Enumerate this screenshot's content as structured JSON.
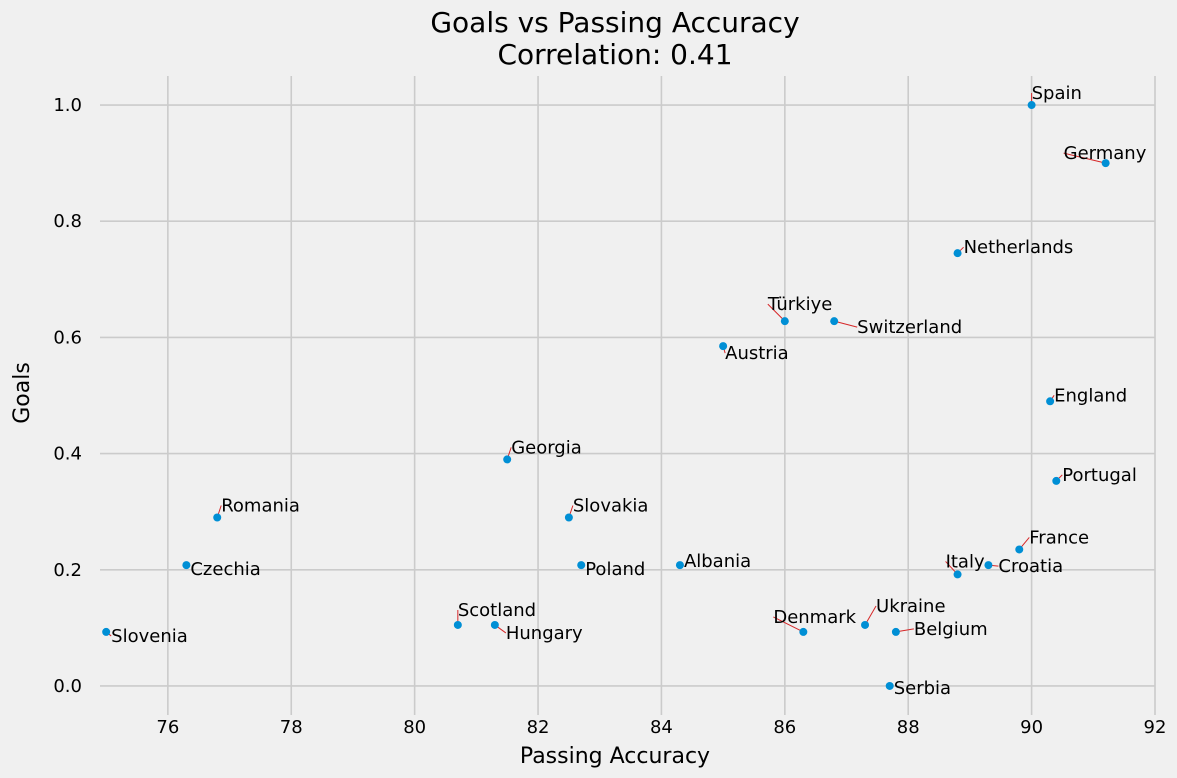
{
  "chart_data": {
    "type": "scatter",
    "title": "Goals vs Passing Accuracy",
    "subtitle": "Correlation: 0.41",
    "xlabel": "Passing Accuracy",
    "ylabel": "Goals",
    "xlim": [
      74.9,
      92.0
    ],
    "ylim": [
      -0.05,
      1.05
    ],
    "x_ticks": [
      76,
      78,
      80,
      82,
      84,
      86,
      88,
      90,
      92
    ],
    "y_ticks": [
      0.0,
      0.2,
      0.4,
      0.6,
      0.8,
      1.0
    ],
    "x_tick_labels": [
      "76",
      "78",
      "80",
      "82",
      "84",
      "86",
      "88",
      "90",
      "92"
    ],
    "y_tick_labels": [
      "0.0",
      "0.2",
      "0.4",
      "0.6",
      "0.8",
      "1.0"
    ],
    "grid": true,
    "colors": {
      "point": "#008fd5",
      "leader": "#d62728",
      "background": "#f0f0f0",
      "grid": "#cbcbcb"
    },
    "points": [
      {
        "label": "Spain",
        "x": 90.0,
        "y": 1.0,
        "dx": 0,
        "dy": -12
      },
      {
        "label": "Germany",
        "x": 91.2,
        "y": 0.9,
        "dx": -42,
        "dy": -10
      },
      {
        "label": "Netherlands",
        "x": 88.8,
        "y": 0.745,
        "dx": 6,
        "dy": -6
      },
      {
        "label": "Türkiye",
        "x": 86.0,
        "y": 0.628,
        "dx": -17,
        "dy": -17
      },
      {
        "label": "Switzerland",
        "x": 86.8,
        "y": 0.628,
        "dx": 23,
        "dy": 6
      },
      {
        "label": "Austria",
        "x": 85.0,
        "y": 0.585,
        "dx": 2,
        "dy": 7
      },
      {
        "label": "England",
        "x": 90.3,
        "y": 0.49,
        "dx": 4,
        "dy": -6
      },
      {
        "label": "Georgia",
        "x": 81.5,
        "y": 0.39,
        "dx": 4,
        "dy": -12
      },
      {
        "label": "Portugal",
        "x": 90.4,
        "y": 0.353,
        "dx": 6,
        "dy": -6
      },
      {
        "label": "Romania",
        "x": 76.8,
        "y": 0.29,
        "dx": 4,
        "dy": -12
      },
      {
        "label": "Slovakia",
        "x": 82.5,
        "y": 0.29,
        "dx": 4,
        "dy": -12
      },
      {
        "label": "France",
        "x": 89.8,
        "y": 0.235,
        "dx": 10,
        "dy": -12
      },
      {
        "label": "Czechia",
        "x": 76.3,
        "y": 0.208,
        "dx": 4,
        "dy": 4
      },
      {
        "label": "Poland",
        "x": 82.7,
        "y": 0.208,
        "dx": 4,
        "dy": 4
      },
      {
        "label": "Albania",
        "x": 84.3,
        "y": 0.208,
        "dx": 4,
        "dy": -4
      },
      {
        "label": "Croatia",
        "x": 89.3,
        "y": 0.208,
        "dx": 10,
        "dy": 1
      },
      {
        "label": "Italy",
        "x": 88.8,
        "y": 0.192,
        "dx": -12,
        "dy": -13
      },
      {
        "label": "Scotland",
        "x": 80.7,
        "y": 0.105,
        "dx": 0,
        "dy": -15
      },
      {
        "label": "Hungary",
        "x": 81.3,
        "y": 0.105,
        "dx": 11,
        "dy": 8
      },
      {
        "label": "Ukraine",
        "x": 87.3,
        "y": 0.105,
        "dx": 11,
        "dy": -19
      },
      {
        "label": "Slovenia",
        "x": 75.0,
        "y": 0.093,
        "dx": 5,
        "dy": 4
      },
      {
        "label": "Denmark",
        "x": 86.3,
        "y": 0.093,
        "dx": -30,
        "dy": -15
      },
      {
        "label": "Belgium",
        "x": 87.8,
        "y": 0.093,
        "dx": 18,
        "dy": -3
      },
      {
        "label": "Serbia",
        "x": 87.7,
        "y": 0.0,
        "dx": 4,
        "dy": 2
      }
    ]
  }
}
